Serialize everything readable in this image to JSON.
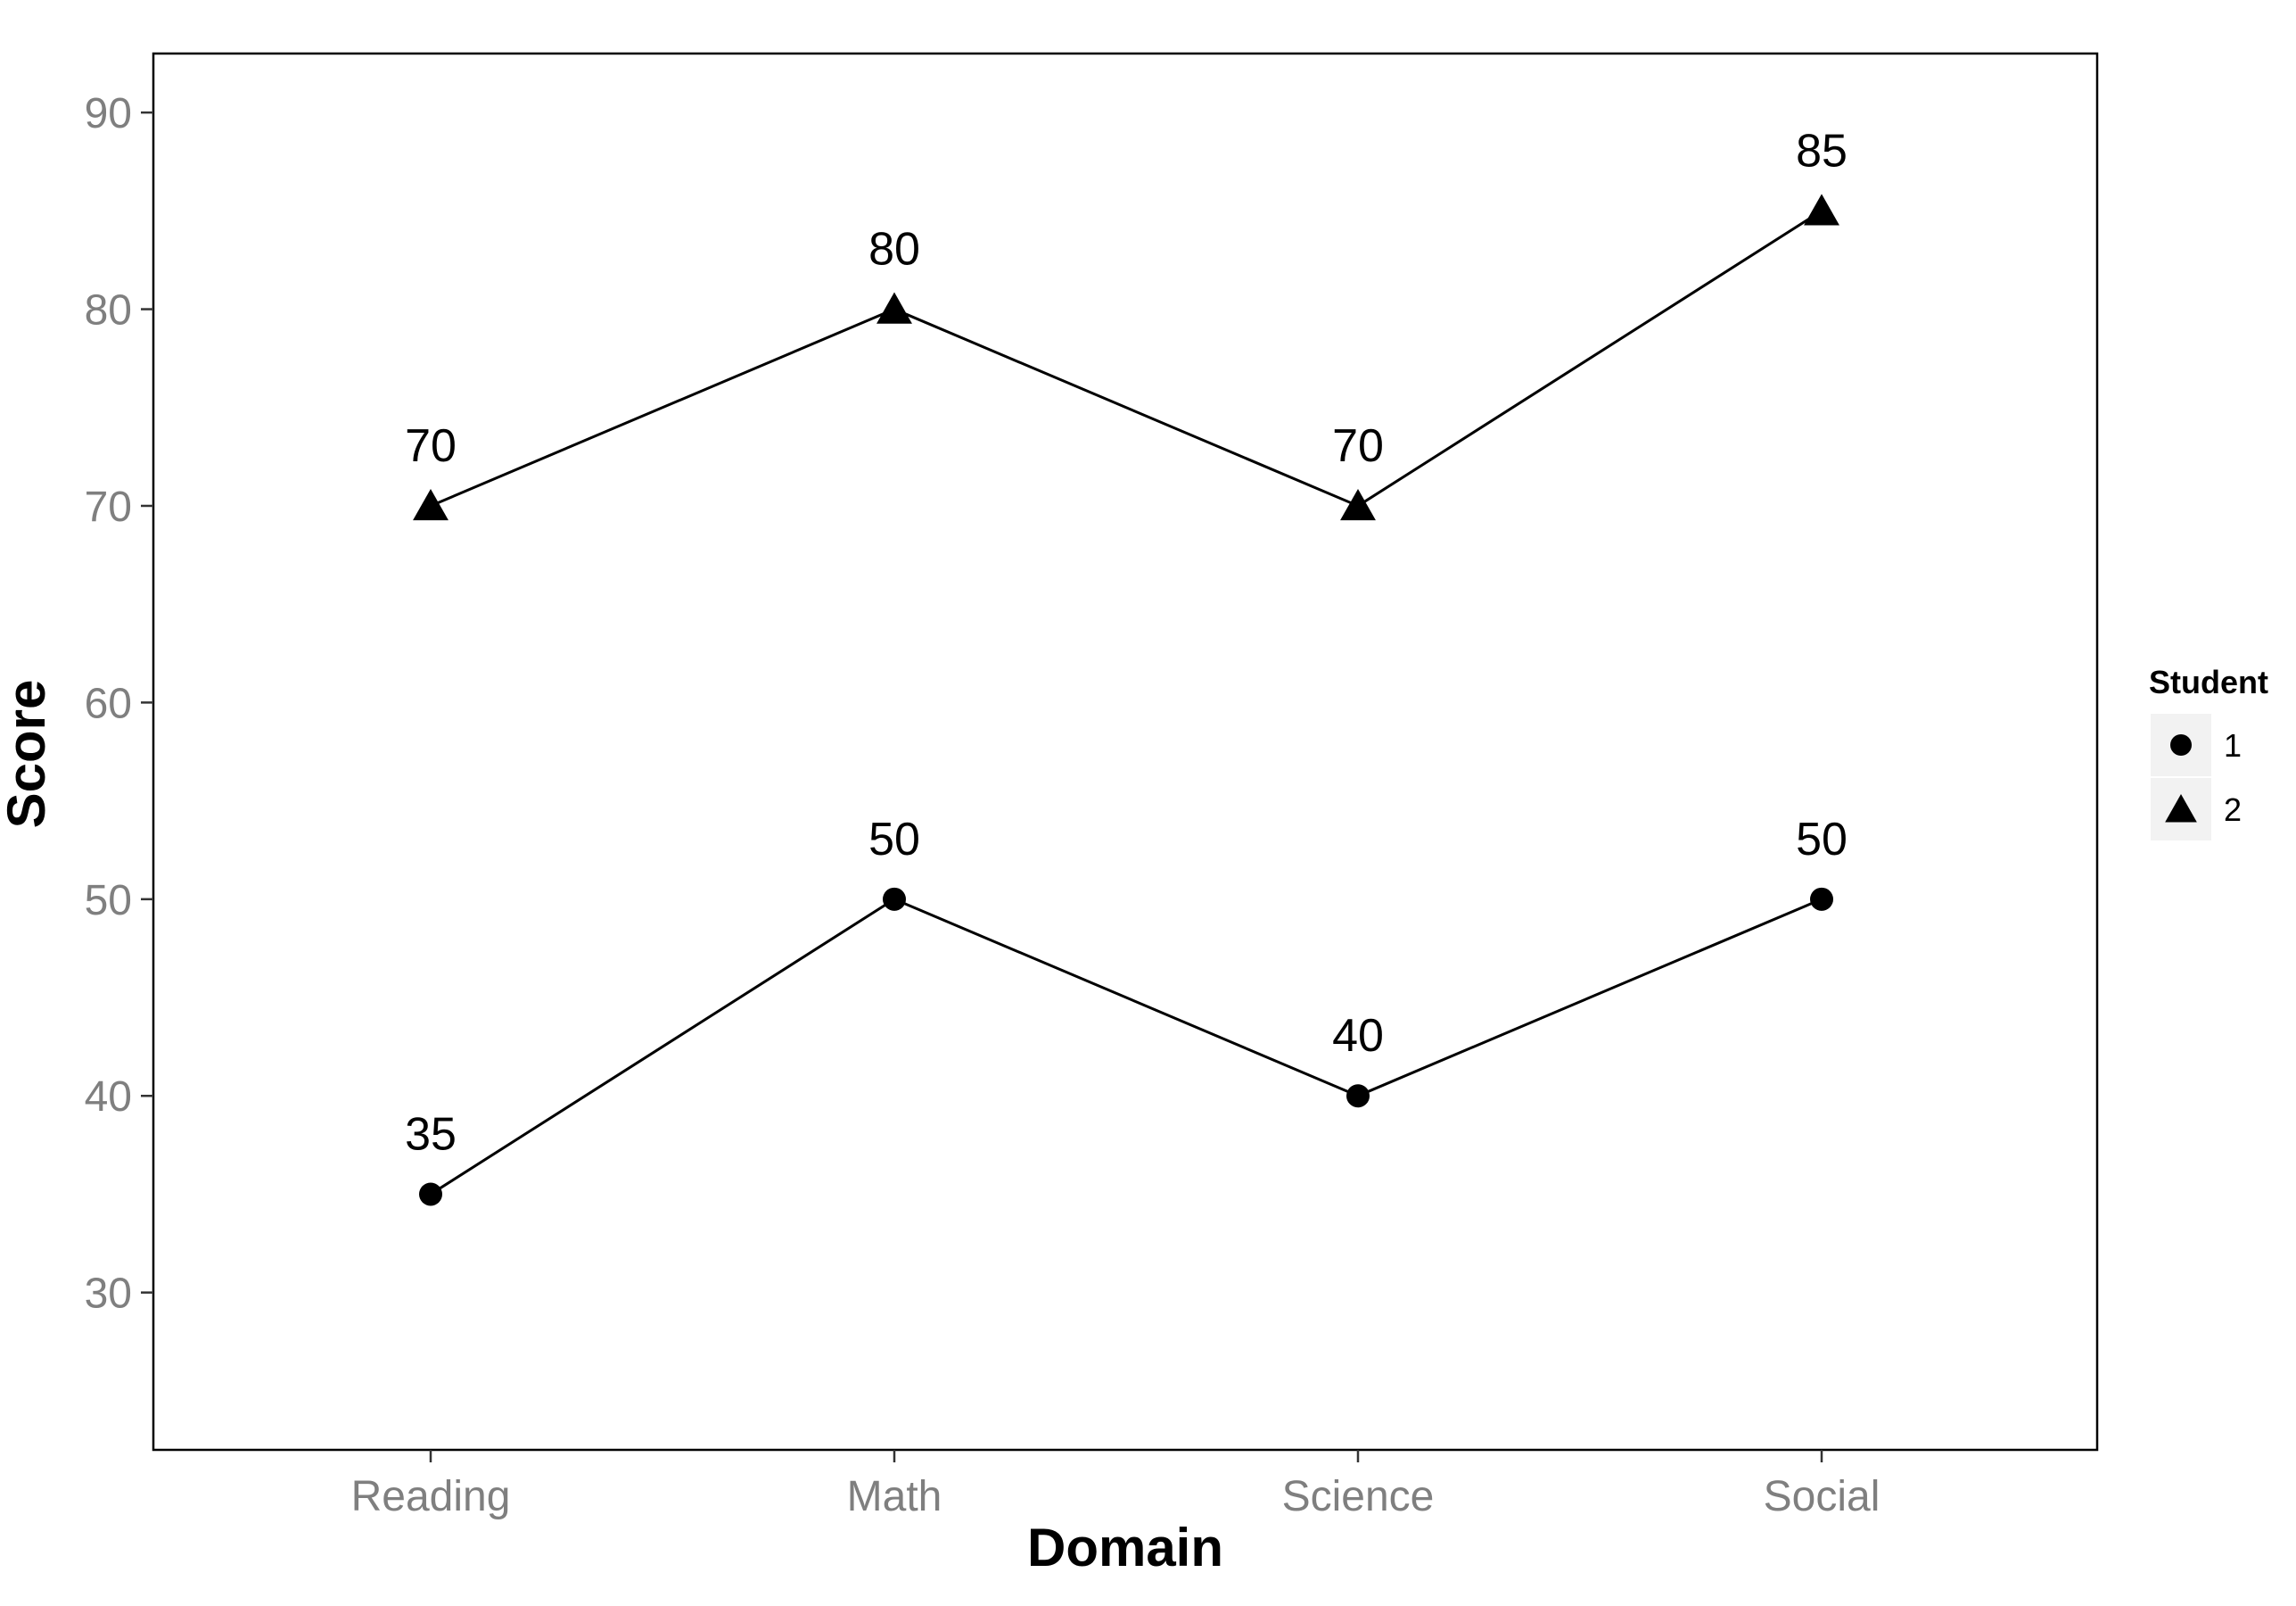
{
  "chart_data": {
    "type": "line",
    "xlabel": "Domain",
    "ylabel": "Score",
    "categories": [
      "Reading",
      "Math",
      "Science",
      "Social"
    ],
    "ylim": [
      22,
      93
    ],
    "yticks": [
      30,
      40,
      50,
      60,
      70,
      80,
      90
    ],
    "grid": false,
    "legend": {
      "title": "Student",
      "position": "right",
      "entries": [
        {
          "label": "1",
          "marker": "circle"
        },
        {
          "label": "2",
          "marker": "triangle"
        }
      ]
    },
    "series": [
      {
        "name": "1",
        "marker": "circle",
        "values": [
          35,
          50,
          40,
          50
        ]
      },
      {
        "name": "2",
        "marker": "triangle",
        "values": [
          70,
          80,
          70,
          85
        ]
      }
    ],
    "colors": {
      "line": "#000000",
      "tick_label": "#7f7f7f",
      "legend_key_bg": "#f2f2f2"
    }
  }
}
